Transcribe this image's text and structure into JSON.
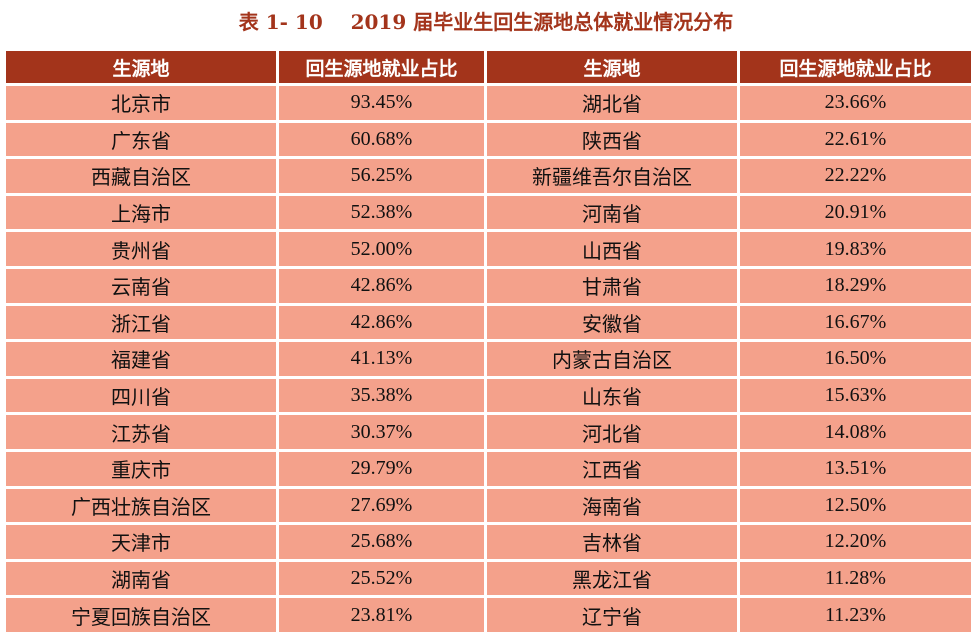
{
  "caption": "表 1- 10    2019 届毕业生回生源地总体就业情况分布",
  "headers": [
    "生源地",
    "回生源地就业占比",
    "生源地",
    "回生源地就业占比"
  ],
  "rows": [
    [
      "北京市",
      "93.45%",
      "湖北省",
      "23.66%"
    ],
    [
      "广东省",
      "60.68%",
      "陕西省",
      "22.61%"
    ],
    [
      "西藏自治区",
      "56.25%",
      "新疆维吾尔自治区",
      "22.22%"
    ],
    [
      "上海市",
      "52.38%",
      "河南省",
      "20.91%"
    ],
    [
      "贵州省",
      "52.00%",
      "山西省",
      "19.83%"
    ],
    [
      "云南省",
      "42.86%",
      "甘肃省",
      "18.29%"
    ],
    [
      "浙江省",
      "42.86%",
      "安徽省",
      "16.67%"
    ],
    [
      "福建省",
      "41.13%",
      "内蒙古自治区",
      "16.50%"
    ],
    [
      "四川省",
      "35.38%",
      "山东省",
      "15.63%"
    ],
    [
      "江苏省",
      "30.37%",
      "河北省",
      "14.08%"
    ],
    [
      "重庆市",
      "29.79%",
      "江西省",
      "13.51%"
    ],
    [
      "广西壮族自治区",
      "27.69%",
      "海南省",
      "12.50%"
    ],
    [
      "天津市",
      "25.68%",
      "吉林省",
      "12.20%"
    ],
    [
      "湖南省",
      "25.52%",
      "黑龙江省",
      "11.28%"
    ],
    [
      "宁夏回族自治区",
      "23.81%",
      "辽宁省",
      "11.23%"
    ]
  ],
  "colors": {
    "header_bg": "#a3341b",
    "header_text": "#ffffff",
    "cell_bg": "#f4a18b",
    "caption_text": "#a3341b"
  }
}
